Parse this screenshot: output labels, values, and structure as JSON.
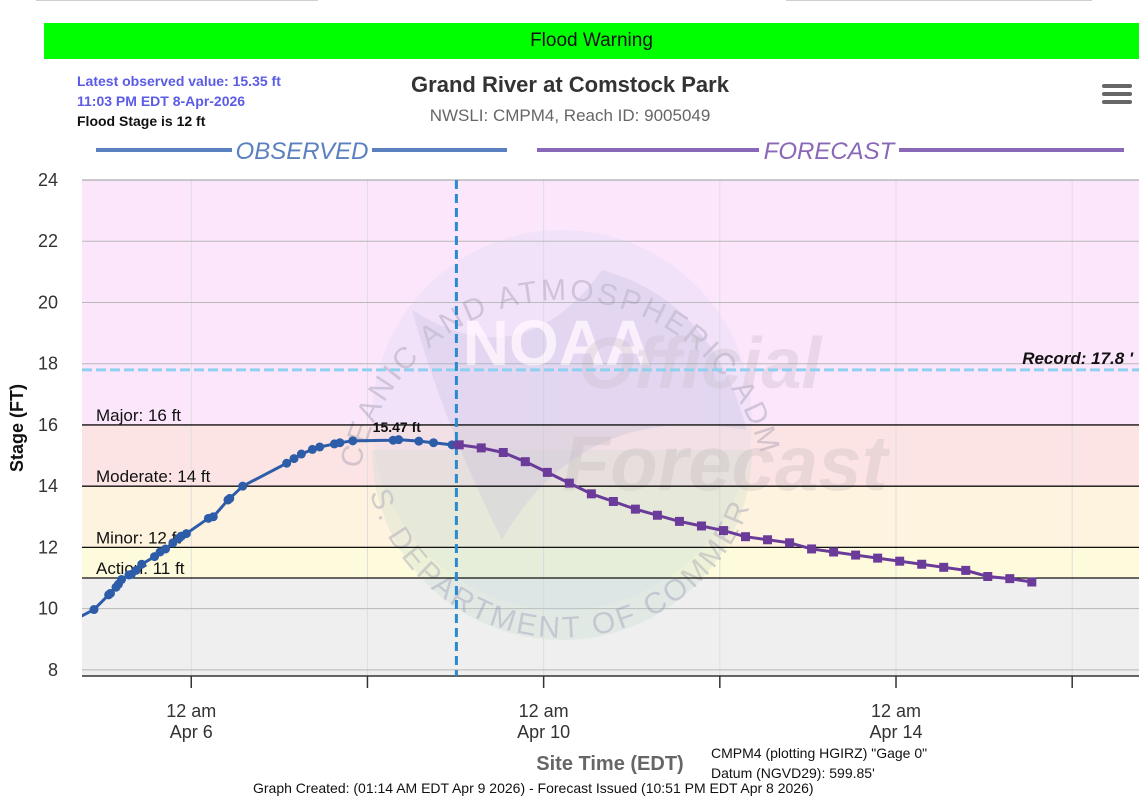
{
  "banner": {
    "text": "Flood Warning",
    "color": "#00ff00"
  },
  "header": {
    "obs_value": "Latest observed value: 15.35 ft",
    "obs_time": "11:03 PM EDT 8-Apr-2026",
    "flood_stage": "Flood Stage is 12 ft",
    "obs_color": "#5b5be6"
  },
  "colors": {
    "observed": "#2d5ca8",
    "forecast": "#6b3b9a",
    "observed_label": "#5b80c0",
    "forecast_label": "#8a68b8",
    "record_line": "#8fd0ee",
    "divider": "#2a8ad0",
    "band_major": "#fce6fc",
    "band_moderate": "#fde4e4",
    "band_minor": "#fef3df",
    "band_action": "#fefbdc",
    "band_normal": "#efefef"
  },
  "menu_icon": "hamburger-menu-icon",
  "chart_data": {
    "type": "line",
    "title": "Grand River at Comstock Park",
    "subtitle": "NWSLI: CMPM4, Reach ID: 9005049",
    "ylabel": "Stage (FT)",
    "xlabel": "Site Time (EDT)",
    "ylim": [
      7.8,
      24
    ],
    "xlim": [
      "2026-04-04 18:14",
      "2026-04-16 18:12"
    ],
    "y_ticks": [
      8,
      10,
      12,
      14,
      16,
      18,
      20,
      22,
      24
    ],
    "x_ticks": [
      {
        "t": "2026-04-06 00:00",
        "line1": "12 am",
        "line2": "Apr 6"
      },
      {
        "t": "2026-04-08 00:00",
        "line1": "",
        "line2": ""
      },
      {
        "t": "2026-04-10 00:00",
        "line1": "12 am",
        "line2": "Apr 10"
      },
      {
        "t": "2026-04-12 00:00",
        "line1": "",
        "line2": ""
      },
      {
        "t": "2026-04-14 00:00",
        "line1": "12 am",
        "line2": "Apr 14"
      },
      {
        "t": "2026-04-16 00:00",
        "line1": "",
        "line2": ""
      }
    ],
    "section_labels": {
      "observed": "OBSERVED",
      "forecast": "FORECAST"
    },
    "flood_categories": [
      {
        "name": "Major: 16 ft",
        "value": 16
      },
      {
        "name": "Moderate: 14 ft",
        "value": 14
      },
      {
        "name": "Minor: 12 ft",
        "value": 12
      },
      {
        "name": "Action: 11 ft",
        "value": 11
      }
    ],
    "record": {
      "label": "Record: 17.8 '",
      "value": 17.8
    },
    "divider_time": "2026-04-09 00:14",
    "peak_label": "15.47 ft",
    "peak_time": "2026-04-08 08:00",
    "peak_value": 15.47,
    "series": [
      {
        "name": "Observed",
        "points": [
          [
            "2026-04-04 18:00",
            9.75
          ],
          [
            "2026-04-04 21:30",
            9.97
          ],
          [
            "2026-04-05 01:30",
            10.45
          ],
          [
            "2026-04-05 02:00",
            10.5
          ],
          [
            "2026-04-05 03:30",
            10.7
          ],
          [
            "2026-04-05 04:10",
            10.8
          ],
          [
            "2026-04-05 05:00",
            10.95
          ],
          [
            "2026-04-05 07:00",
            11.1
          ],
          [
            "2026-04-05 07:40",
            11.12
          ],
          [
            "2026-04-05 09:00",
            11.25
          ],
          [
            "2026-04-05 10:30",
            11.45
          ],
          [
            "2026-04-05 14:00",
            11.7
          ],
          [
            "2026-04-05 15:30",
            11.85
          ],
          [
            "2026-04-05 17:00",
            11.95
          ],
          [
            "2026-04-05 19:00",
            12.15
          ],
          [
            "2026-04-05 20:40",
            12.3
          ],
          [
            "2026-04-05 21:20",
            12.37
          ],
          [
            "2026-04-05 22:40",
            12.45
          ],
          [
            "2026-04-06 04:40",
            12.95
          ],
          [
            "2026-04-06 06:00",
            13.0
          ],
          [
            "2026-04-06 10:00",
            13.55
          ],
          [
            "2026-04-06 10:30",
            13.6
          ],
          [
            "2026-04-06 14:00",
            14.0
          ],
          [
            "2026-04-07 02:00",
            14.75
          ],
          [
            "2026-04-07 04:00",
            14.9
          ],
          [
            "2026-04-07 06:00",
            15.05
          ],
          [
            "2026-04-07 09:00",
            15.2
          ],
          [
            "2026-04-07 11:00",
            15.28
          ],
          [
            "2026-04-07 15:00",
            15.38
          ],
          [
            "2026-04-07 16:30",
            15.42
          ],
          [
            "2026-04-07 20:00",
            15.48
          ],
          [
            "2026-04-08 07:00",
            15.5
          ],
          [
            "2026-04-08 08:30",
            15.52
          ],
          [
            "2026-04-08 14:00",
            15.47
          ],
          [
            "2026-04-08 18:00",
            15.42
          ],
          [
            "2026-04-08 23:03",
            15.35
          ]
        ]
      },
      {
        "name": "Forecast",
        "points": [
          [
            "2026-04-09 01:00",
            15.35
          ],
          [
            "2026-04-09 07:00",
            15.25
          ],
          [
            "2026-04-09 13:00",
            15.1
          ],
          [
            "2026-04-09 19:00",
            14.8
          ],
          [
            "2026-04-10 01:00",
            14.45
          ],
          [
            "2026-04-10 07:00",
            14.1
          ],
          [
            "2026-04-10 13:00",
            13.75
          ],
          [
            "2026-04-10 19:00",
            13.5
          ],
          [
            "2026-04-11 01:00",
            13.25
          ],
          [
            "2026-04-11 07:00",
            13.05
          ],
          [
            "2026-04-11 13:00",
            12.85
          ],
          [
            "2026-04-11 19:00",
            12.7
          ],
          [
            "2026-04-12 01:00",
            12.55
          ],
          [
            "2026-04-12 07:00",
            12.35
          ],
          [
            "2026-04-12 13:00",
            12.25
          ],
          [
            "2026-04-12 19:00",
            12.15
          ],
          [
            "2026-04-13 01:00",
            11.95
          ],
          [
            "2026-04-13 07:00",
            11.85
          ],
          [
            "2026-04-13 13:00",
            11.75
          ],
          [
            "2026-04-13 19:00",
            11.65
          ],
          [
            "2026-04-14 01:00",
            11.55
          ],
          [
            "2026-04-14 07:00",
            11.45
          ],
          [
            "2026-04-14 13:00",
            11.35
          ],
          [
            "2026-04-14 19:00",
            11.25
          ],
          [
            "2026-04-15 01:00",
            11.05
          ],
          [
            "2026-04-15 07:00",
            10.98
          ],
          [
            "2026-04-15 13:00",
            10.87
          ]
        ]
      }
    ]
  },
  "watermark": {
    "ring_text": "NATIONAL OCEANIC AND ATMOSPHERIC ADMINISTRATION",
    "bottom_text": "U.S. DEPARTMENT OF COMMERCE",
    "logo_text": "NOAA",
    "overlay_1": "Official",
    "overlay_2": "Forecast"
  },
  "footer": {
    "note_1": "CMPM4 (plotting HGIRZ) \"Gage 0\"",
    "note_2": "Datum (NGVD29): 599.85'",
    "created": "Graph Created: (01:14 AM EDT Apr 9 2026) - Forecast Issued (10:51 PM EDT Apr 8 2026)"
  }
}
